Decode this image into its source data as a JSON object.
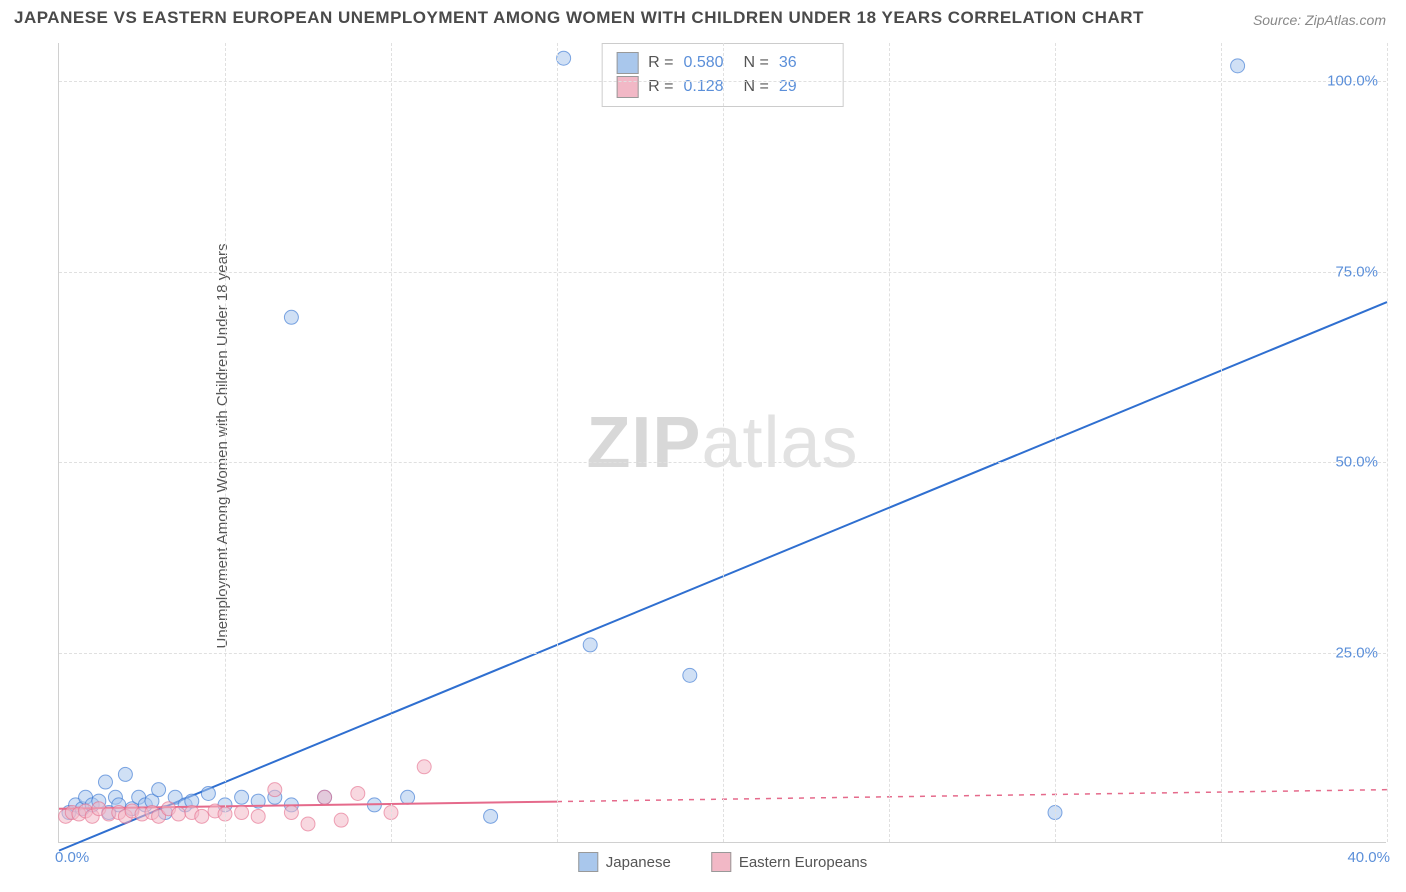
{
  "title": "JAPANESE VS EASTERN EUROPEAN UNEMPLOYMENT AMONG WOMEN WITH CHILDREN UNDER 18 YEARS CORRELATION CHART",
  "source": "Source: ZipAtlas.com",
  "ylabel": "Unemployment Among Women with Children Under 18 years",
  "watermark_bold": "ZIP",
  "watermark_rest": "atlas",
  "chart": {
    "type": "scatter",
    "background_color": "#ffffff",
    "grid_color": "#e0e0e0",
    "axis_color": "#d0d0d0",
    "tick_color": "#5b8fd9",
    "xlim": [
      0,
      40
    ],
    "ylim": [
      0,
      105
    ],
    "xticks": [
      {
        "v": 0,
        "label": "0.0%"
      },
      {
        "v": 40,
        "label": "40.0%"
      }
    ],
    "yticks": [
      {
        "v": 25,
        "label": "25.0%"
      },
      {
        "v": 50,
        "label": "50.0%"
      },
      {
        "v": 75,
        "label": "75.0%"
      },
      {
        "v": 100,
        "label": "100.0%"
      }
    ],
    "x_gridlines": [
      5,
      10,
      15,
      20,
      25,
      30,
      35,
      40
    ],
    "marker_radius": 7,
    "marker_stroke": "#888888",
    "marker_opacity": 0.55,
    "line_width": 2,
    "series": [
      {
        "name": "Japanese",
        "color": "#a9c7ec",
        "line_color": "#2f6fd0",
        "R": "0.580",
        "N": "36",
        "trend": {
          "x1": 0,
          "y1": -1,
          "x2": 40,
          "y2": 71,
          "dash_after_x": 40
        },
        "points": [
          [
            0.3,
            4
          ],
          [
            0.5,
            5
          ],
          [
            0.7,
            4.5
          ],
          [
            0.8,
            6
          ],
          [
            1.0,
            5
          ],
          [
            1.2,
            5.5
          ],
          [
            1.4,
            8
          ],
          [
            1.5,
            4
          ],
          [
            1.7,
            6
          ],
          [
            1.8,
            5
          ],
          [
            2.0,
            9
          ],
          [
            2.2,
            4.5
          ],
          [
            2.4,
            6
          ],
          [
            2.6,
            5
          ],
          [
            2.8,
            5.5
          ],
          [
            3.0,
            7
          ],
          [
            3.2,
            4
          ],
          [
            3.5,
            6
          ],
          [
            3.8,
            5
          ],
          [
            4.0,
            5.5
          ],
          [
            4.5,
            6.5
          ],
          [
            5.0,
            5
          ],
          [
            5.5,
            6
          ],
          [
            6.0,
            5.5
          ],
          [
            6.5,
            6
          ],
          [
            7.0,
            5
          ],
          [
            7.0,
            69
          ],
          [
            8.0,
            6
          ],
          [
            9.5,
            5
          ],
          [
            10.5,
            6
          ],
          [
            13.0,
            3.5
          ],
          [
            16.0,
            26
          ],
          [
            15.2,
            103
          ],
          [
            19.0,
            22
          ],
          [
            30.0,
            4
          ],
          [
            35.5,
            102
          ]
        ]
      },
      {
        "name": "Eastern Europeans",
        "color": "#f2b8c6",
        "line_color": "#e56a8b",
        "R": "0.128",
        "N": "29",
        "trend": {
          "x1": 0,
          "y1": 4.5,
          "x2": 40,
          "y2": 7,
          "dash_after_x": 15
        },
        "points": [
          [
            0.2,
            3.5
          ],
          [
            0.4,
            4
          ],
          [
            0.6,
            3.8
          ],
          [
            0.8,
            4.2
          ],
          [
            1.0,
            3.5
          ],
          [
            1.2,
            4.5
          ],
          [
            1.5,
            3.8
          ],
          [
            1.8,
            4
          ],
          [
            2.0,
            3.5
          ],
          [
            2.2,
            4.2
          ],
          [
            2.5,
            3.8
          ],
          [
            2.8,
            4
          ],
          [
            3.0,
            3.5
          ],
          [
            3.3,
            4.5
          ],
          [
            3.6,
            3.8
          ],
          [
            4.0,
            4
          ],
          [
            4.3,
            3.5
          ],
          [
            4.7,
            4.2
          ],
          [
            5.0,
            3.8
          ],
          [
            5.5,
            4
          ],
          [
            6.0,
            3.5
          ],
          [
            6.5,
            7
          ],
          [
            7.0,
            4
          ],
          [
            7.5,
            2.5
          ],
          [
            8.0,
            6
          ],
          [
            8.5,
            3
          ],
          [
            9.0,
            6.5
          ],
          [
            10.0,
            4
          ],
          [
            11.0,
            10
          ]
        ]
      }
    ]
  },
  "stats_box": {
    "rows": [
      {
        "swatch": "#a9c7ec",
        "R_label": "R =",
        "R": "0.580",
        "N_label": "N =",
        "N": "36"
      },
      {
        "swatch": "#f2b8c6",
        "R_label": "R =",
        "R": "0.128",
        "N_label": "N =",
        "N": "29"
      }
    ]
  },
  "bottom_legend": [
    {
      "swatch": "#a9c7ec",
      "label": "Japanese"
    },
    {
      "swatch": "#f2b8c6",
      "label": "Eastern Europeans"
    }
  ]
}
